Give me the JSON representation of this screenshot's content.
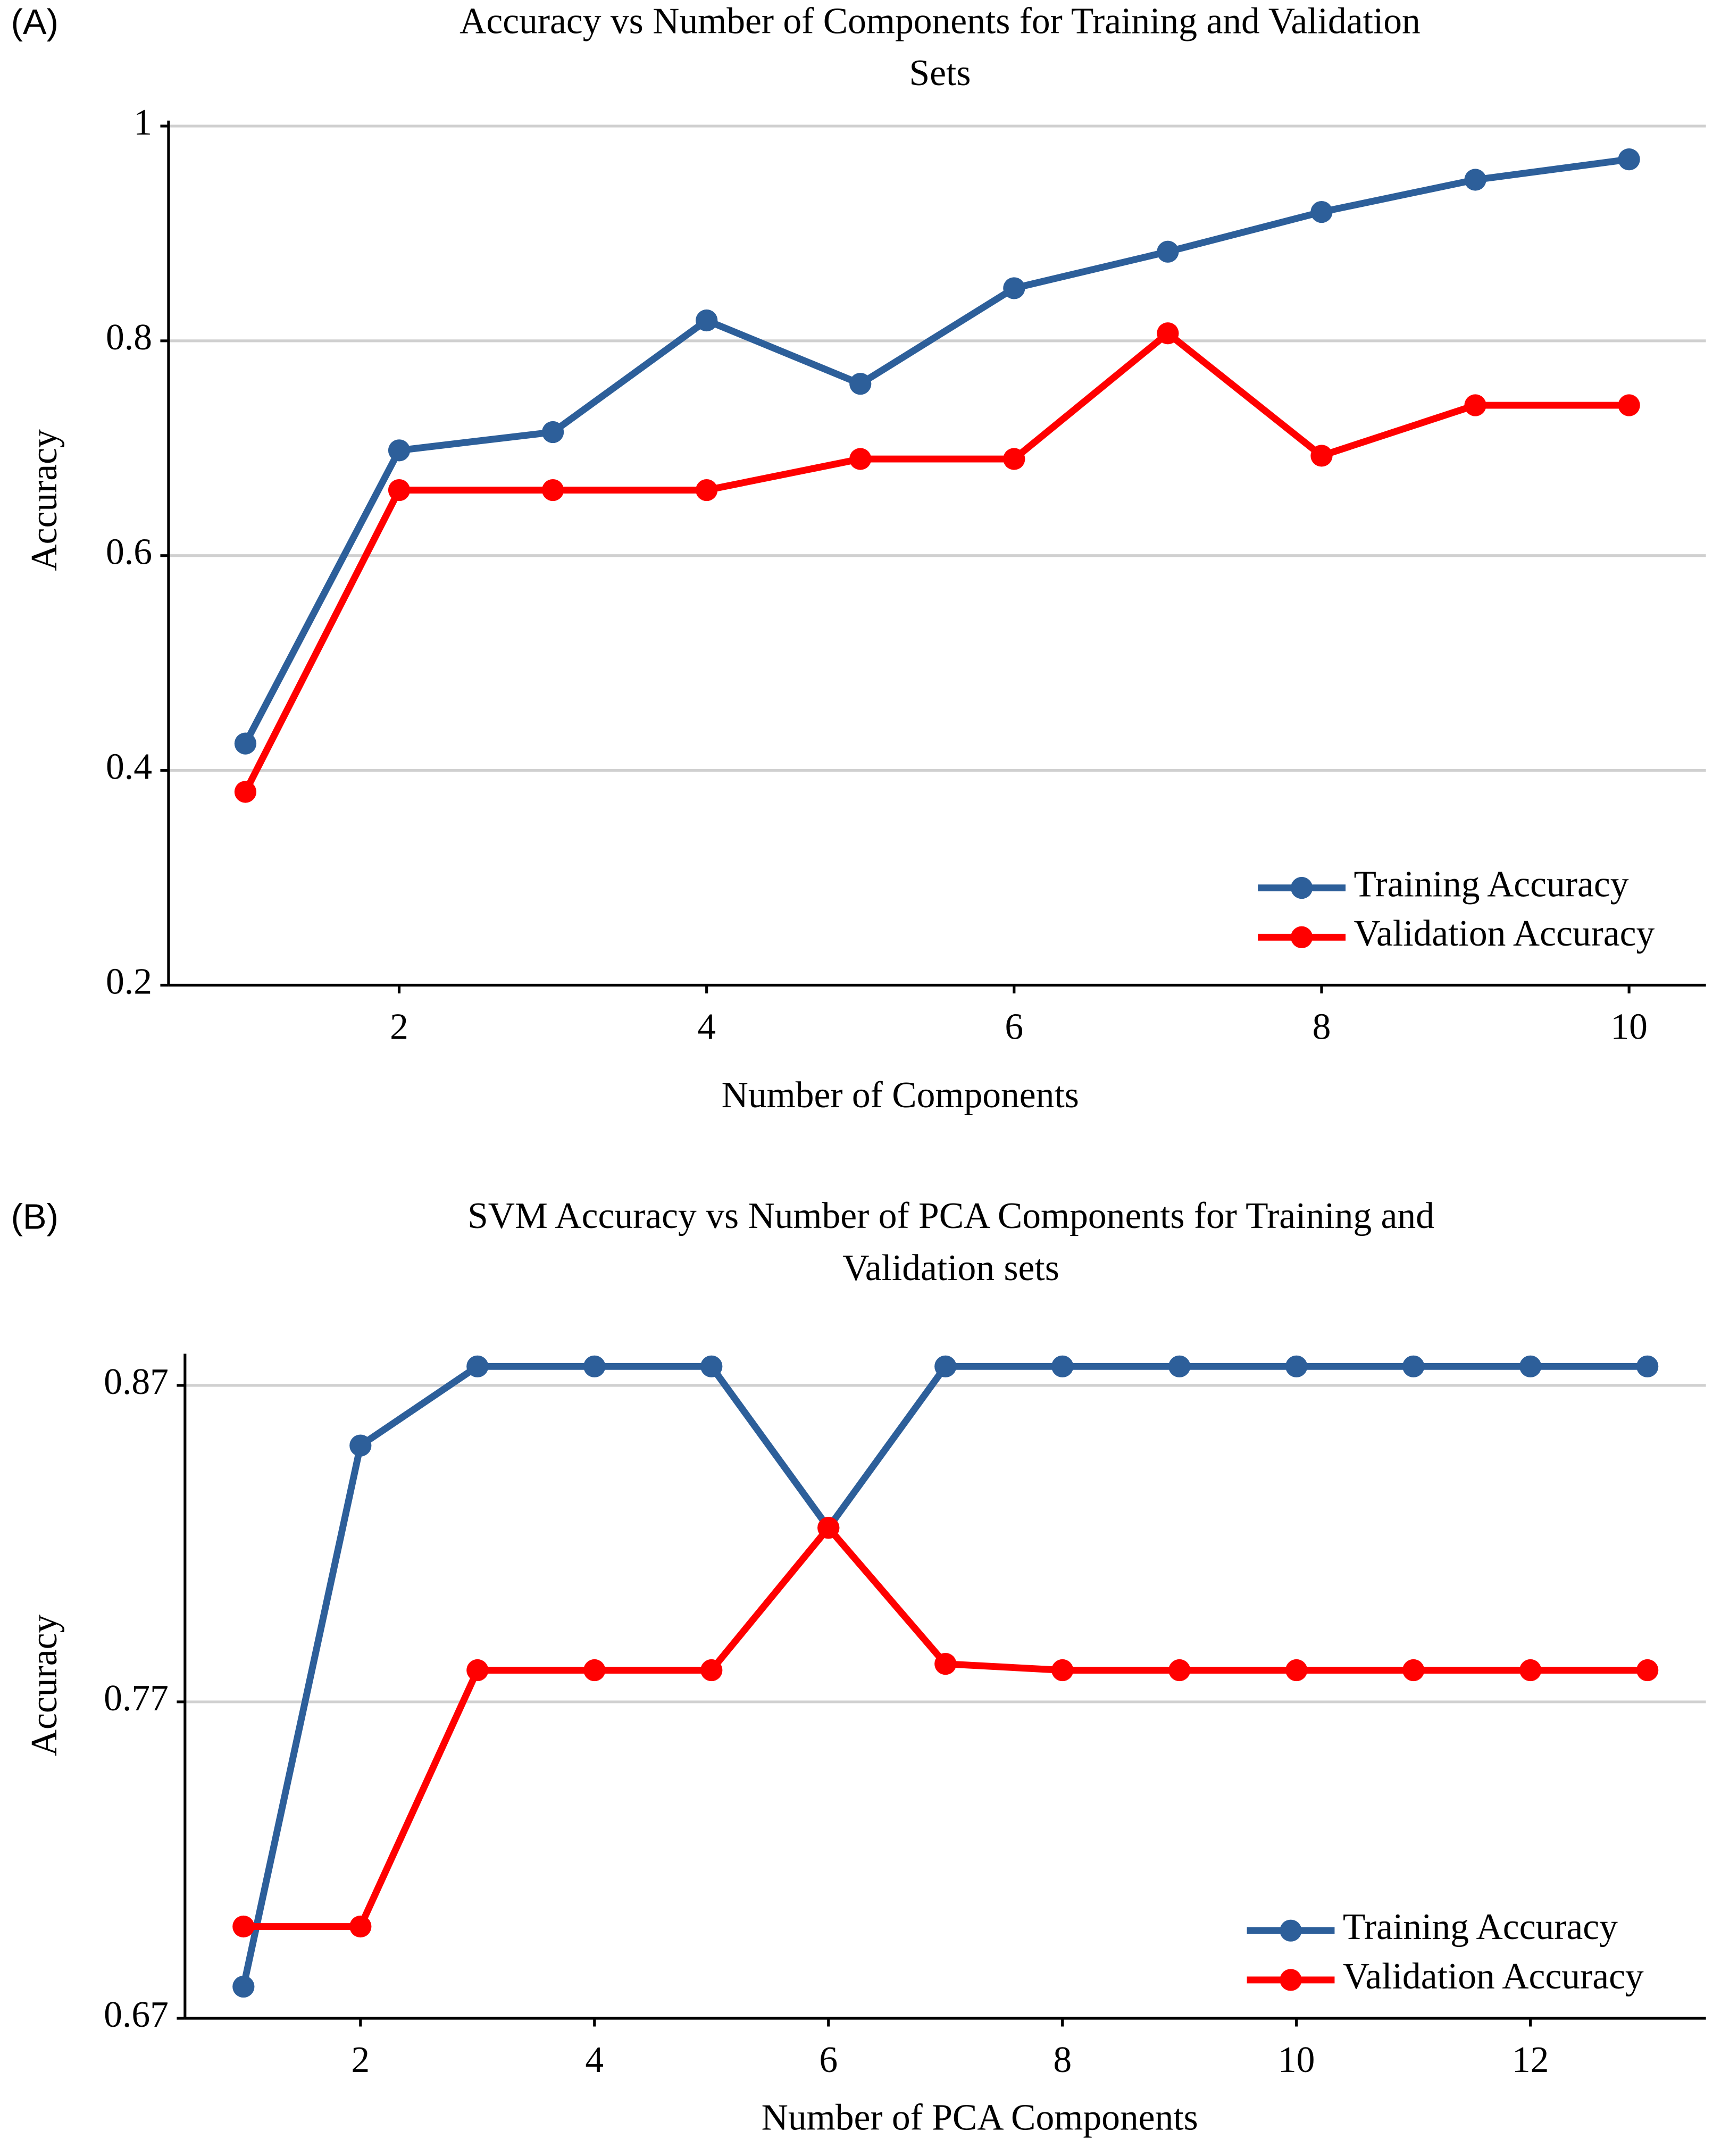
{
  "chart_data": [
    {
      "type": "line",
      "panel_label": "(A)",
      "title": [
        "Accuracy vs Number of Components for Training and Validation",
        "Sets"
      ],
      "x_label": "Number of Components",
      "y_label": "Accuracy",
      "x": [
        1,
        2,
        3,
        4,
        5,
        6,
        7,
        8,
        9,
        10
      ],
      "xlim": [
        0.5,
        10.5
      ],
      "xticks": [
        2,
        4,
        6,
        8,
        10
      ],
      "ylim": [
        0.2,
        1
      ],
      "yticks": [
        0.2,
        0.4,
        0.6,
        0.8,
        1
      ],
      "grid": true,
      "legend": "lower right",
      "series": [
        {
          "name": "Training Accuracy",
          "color": "#2d5f9a",
          "values": [
            0.425,
            0.698,
            0.715,
            0.819,
            0.76,
            0.849,
            0.883,
            0.92,
            0.95,
            0.969
          ]
        },
        {
          "name": "Validation Accuracy",
          "color": "#ff0000",
          "values": [
            0.38,
            0.661,
            0.661,
            0.661,
            0.69,
            0.69,
            0.807,
            0.693,
            0.74,
            0.74
          ]
        }
      ]
    },
    {
      "type": "line",
      "panel_label": "(B)",
      "title": [
        "SVM Accuracy vs Number of PCA Components for Training and",
        "Validation sets"
      ],
      "x_label": "Number of PCA Components",
      "y_label": "Accuracy",
      "x": [
        1,
        2,
        3,
        4,
        5,
        6,
        7,
        8,
        9,
        10,
        11,
        12,
        13
      ],
      "xlim": [
        0.5,
        13.5
      ],
      "xticks": [
        2,
        4,
        6,
        8,
        10,
        12
      ],
      "ylim": [
        0.67,
        0.88
      ],
      "yticks": [
        0.67,
        0.77,
        0.87
      ],
      "grid": true,
      "legend": "lower right",
      "series": [
        {
          "name": "Training Accuracy",
          "color": "#2d5f9a",
          "values": [
            0.68,
            0.851,
            0.876,
            0.876,
            0.876,
            0.825,
            0.876,
            0.876,
            0.876,
            0.876,
            0.876,
            0.876,
            0.876
          ]
        },
        {
          "name": "Validation Accuracy",
          "color": "#ff0000",
          "values": [
            0.699,
            0.699,
            0.78,
            0.78,
            0.78,
            0.825,
            0.782,
            0.78,
            0.78,
            0.78,
            0.78,
            0.78,
            0.78
          ]
        }
      ]
    }
  ]
}
